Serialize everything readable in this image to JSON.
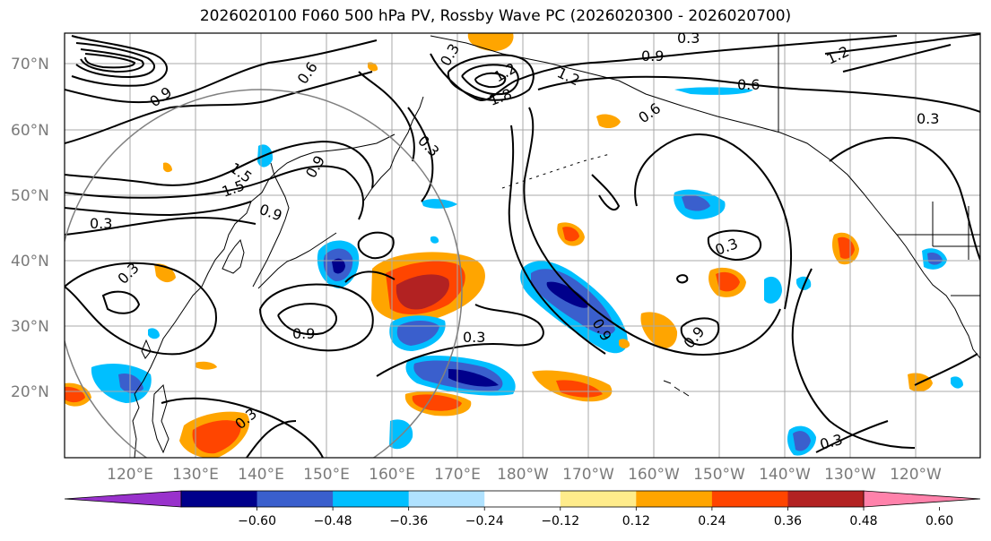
{
  "title": "2026020100 F060 500 hPa PV, Rossby Wave PC (2026020300 - 2026020700)",
  "lat_labels": [
    "70°N",
    "60°N",
    "50°N",
    "40°N",
    "30°N",
    "20°N"
  ],
  "lon_labels": [
    "120°E",
    "130°E",
    "140°E",
    "150°E",
    "160°E",
    "170°E",
    "180°W",
    "170°W",
    "160°W",
    "150°W",
    "140°W",
    "130°W",
    "120°W"
  ],
  "colorbar": {
    "ticks": [
      "−0.60",
      "−0.48",
      "−0.36",
      "−0.24",
      "−0.12",
      "0.12",
      "0.24",
      "0.36",
      "0.48",
      "0.60"
    ],
    "colors": [
      "#9932cc",
      "#00008b",
      "#3a5fcd",
      "#00bfff",
      "#b0e2ff",
      "#ffffff",
      "#ffec8b",
      "#ffa500",
      "#ff4500",
      "#b22222",
      "#ff82ab"
    ]
  },
  "contour_labels": [
    "0.3",
    "0.6",
    "0.9",
    "1.2",
    "1.5",
    "1.8"
  ],
  "contour_label_instances": [
    "0.3",
    "0.3",
    "0.3",
    "0.3",
    "0.3",
    "0.3",
    "0.6",
    "0.6",
    "0.6",
    "0.9",
    "0.9",
    "0.9",
    "0.9",
    "1.2",
    "1.2",
    "1.2",
    "1.5",
    "1.5",
    "1.8"
  ],
  "colors": {
    "contour": "#000000",
    "grid": "#a9a9a9",
    "coast": "#000000",
    "circle": "#808080"
  }
}
